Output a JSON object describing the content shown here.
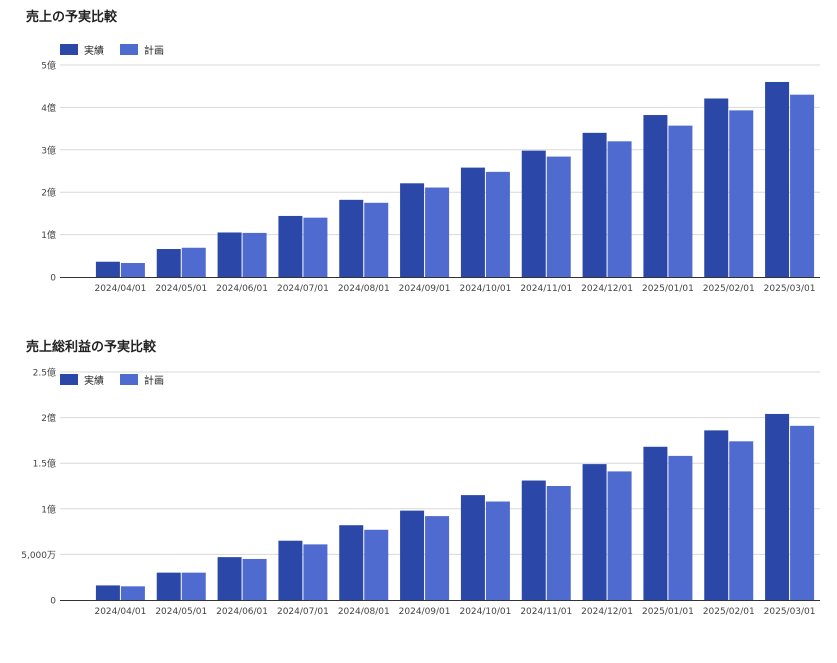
{
  "chart_data": [
    {
      "type": "bar",
      "title": "売上の予実比較",
      "categories": [
        "2024/04/01",
        "2024/05/01",
        "2024/06/01",
        "2024/07/01",
        "2024/08/01",
        "2024/09/01",
        "2024/10/01",
        "2024/11/01",
        "2024/12/01",
        "2025/01/01",
        "2025/02/01",
        "2025/03/01"
      ],
      "series": [
        {
          "name": "実績",
          "color": "#2b47a8",
          "values": [
            0.36,
            0.66,
            1.05,
            1.44,
            1.82,
            2.21,
            2.58,
            2.98,
            3.4,
            3.82,
            4.21,
            4.6
          ]
        },
        {
          "name": "計画",
          "color": "#4f6bd0",
          "values": [
            0.33,
            0.69,
            1.04,
            1.4,
            1.75,
            2.11,
            2.48,
            2.84,
            3.2,
            3.57,
            3.93,
            4.3
          ]
        }
      ],
      "yticks": [
        0,
        1,
        2,
        3,
        4,
        5
      ],
      "ytick_labels": [
        "0",
        "1億",
        "2億",
        "3億",
        "4億",
        "5億"
      ],
      "ylim": [
        0,
        5
      ],
      "xlabel": "",
      "ylabel": "",
      "grid": true,
      "legend_position": "top-left"
    },
    {
      "type": "bar",
      "title": "売上総利益の予実比較",
      "categories": [
        "2024/04/01",
        "2024/05/01",
        "2024/06/01",
        "2024/07/01",
        "2024/08/01",
        "2024/09/01",
        "2024/10/01",
        "2024/11/01",
        "2024/12/01",
        "2025/01/01",
        "2025/02/01",
        "2025/03/01"
      ],
      "series": [
        {
          "name": "実績",
          "color": "#2b47a8",
          "values": [
            0.16,
            0.3,
            0.47,
            0.65,
            0.82,
            0.98,
            1.15,
            1.31,
            1.49,
            1.68,
            1.86,
            2.04
          ]
        },
        {
          "name": "計画",
          "color": "#4f6bd0",
          "values": [
            0.15,
            0.3,
            0.45,
            0.61,
            0.77,
            0.92,
            1.08,
            1.25,
            1.41,
            1.58,
            1.74,
            1.91
          ]
        }
      ],
      "yticks": [
        0,
        0.5,
        1,
        1.5,
        2,
        2.5
      ],
      "ytick_labels": [
        "0",
        "5,000万",
        "1億",
        "1.5億",
        "2億",
        "2.5億"
      ],
      "ylim": [
        0,
        2.5
      ],
      "xlabel": "",
      "ylabel": "",
      "grid": true,
      "legend_position": "top-left"
    }
  ]
}
